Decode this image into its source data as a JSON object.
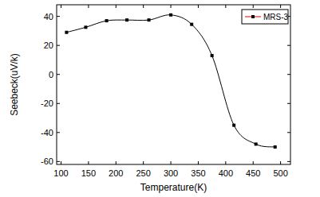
{
  "chart_data": {
    "type": "line",
    "x_label": "Temperature(K)",
    "y_label": "Seebeck(uV/k)",
    "series": [
      {
        "name": "MRS-3",
        "color": "#000000",
        "marker": "square",
        "line_style": "smooth",
        "x": [
          110,
          145,
          183,
          220,
          260,
          300,
          338,
          375,
          415,
          455,
          490
        ],
        "values": [
          29,
          32.5,
          37,
          37.5,
          37.5,
          41,
          34.5,
          13,
          -35,
          -48,
          -50
        ]
      }
    ],
    "xlim": [
      92,
      518
    ],
    "xticks": [
      100,
      150,
      200,
      250,
      300,
      350,
      400,
      450,
      500
    ],
    "ylim": [
      -62,
      48
    ],
    "yticks": [
      -60,
      -40,
      -20,
      0,
      20,
      40
    ],
    "legend": "upper-right",
    "grid": false
  }
}
